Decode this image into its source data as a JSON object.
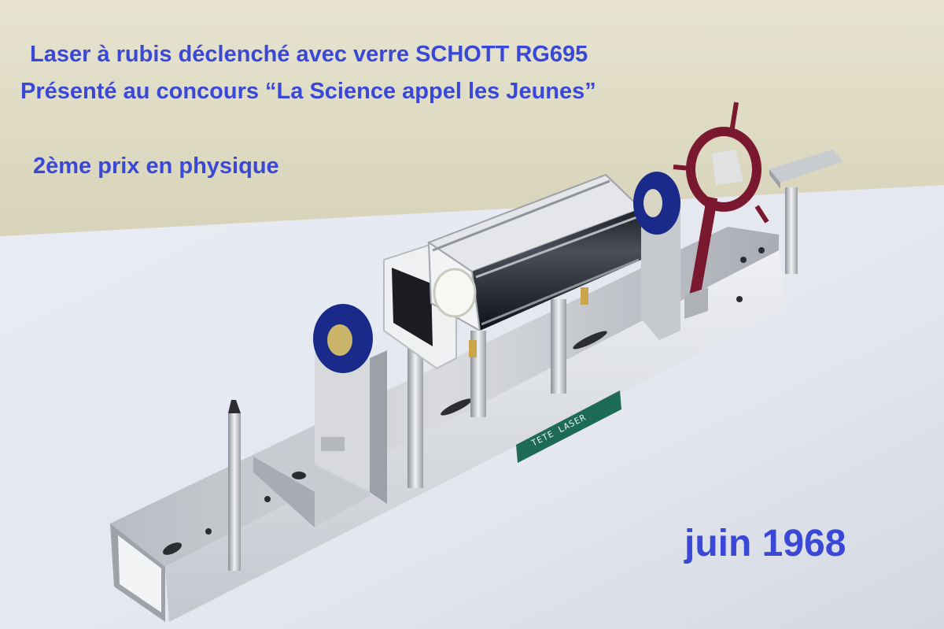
{
  "photo": {
    "caption_line1": "Laser à rubis déclenché avec verre SCHOTT RG695",
    "caption_line2": "Présenté au concours “La Science appel les Jeunes”",
    "caption_line3": "2ème prix en physique",
    "date": "juin 1968",
    "plate_label": "TETE  LASER"
  },
  "colors": {
    "caption": "#3a48d8",
    "wall": "#ddd9c1",
    "table": "#e8ebf3",
    "aluminium": "#c5c8cc",
    "mount_blue": "#1a2a8a",
    "ring_red": "#7a1830",
    "plate_green": "#1d6a55"
  }
}
